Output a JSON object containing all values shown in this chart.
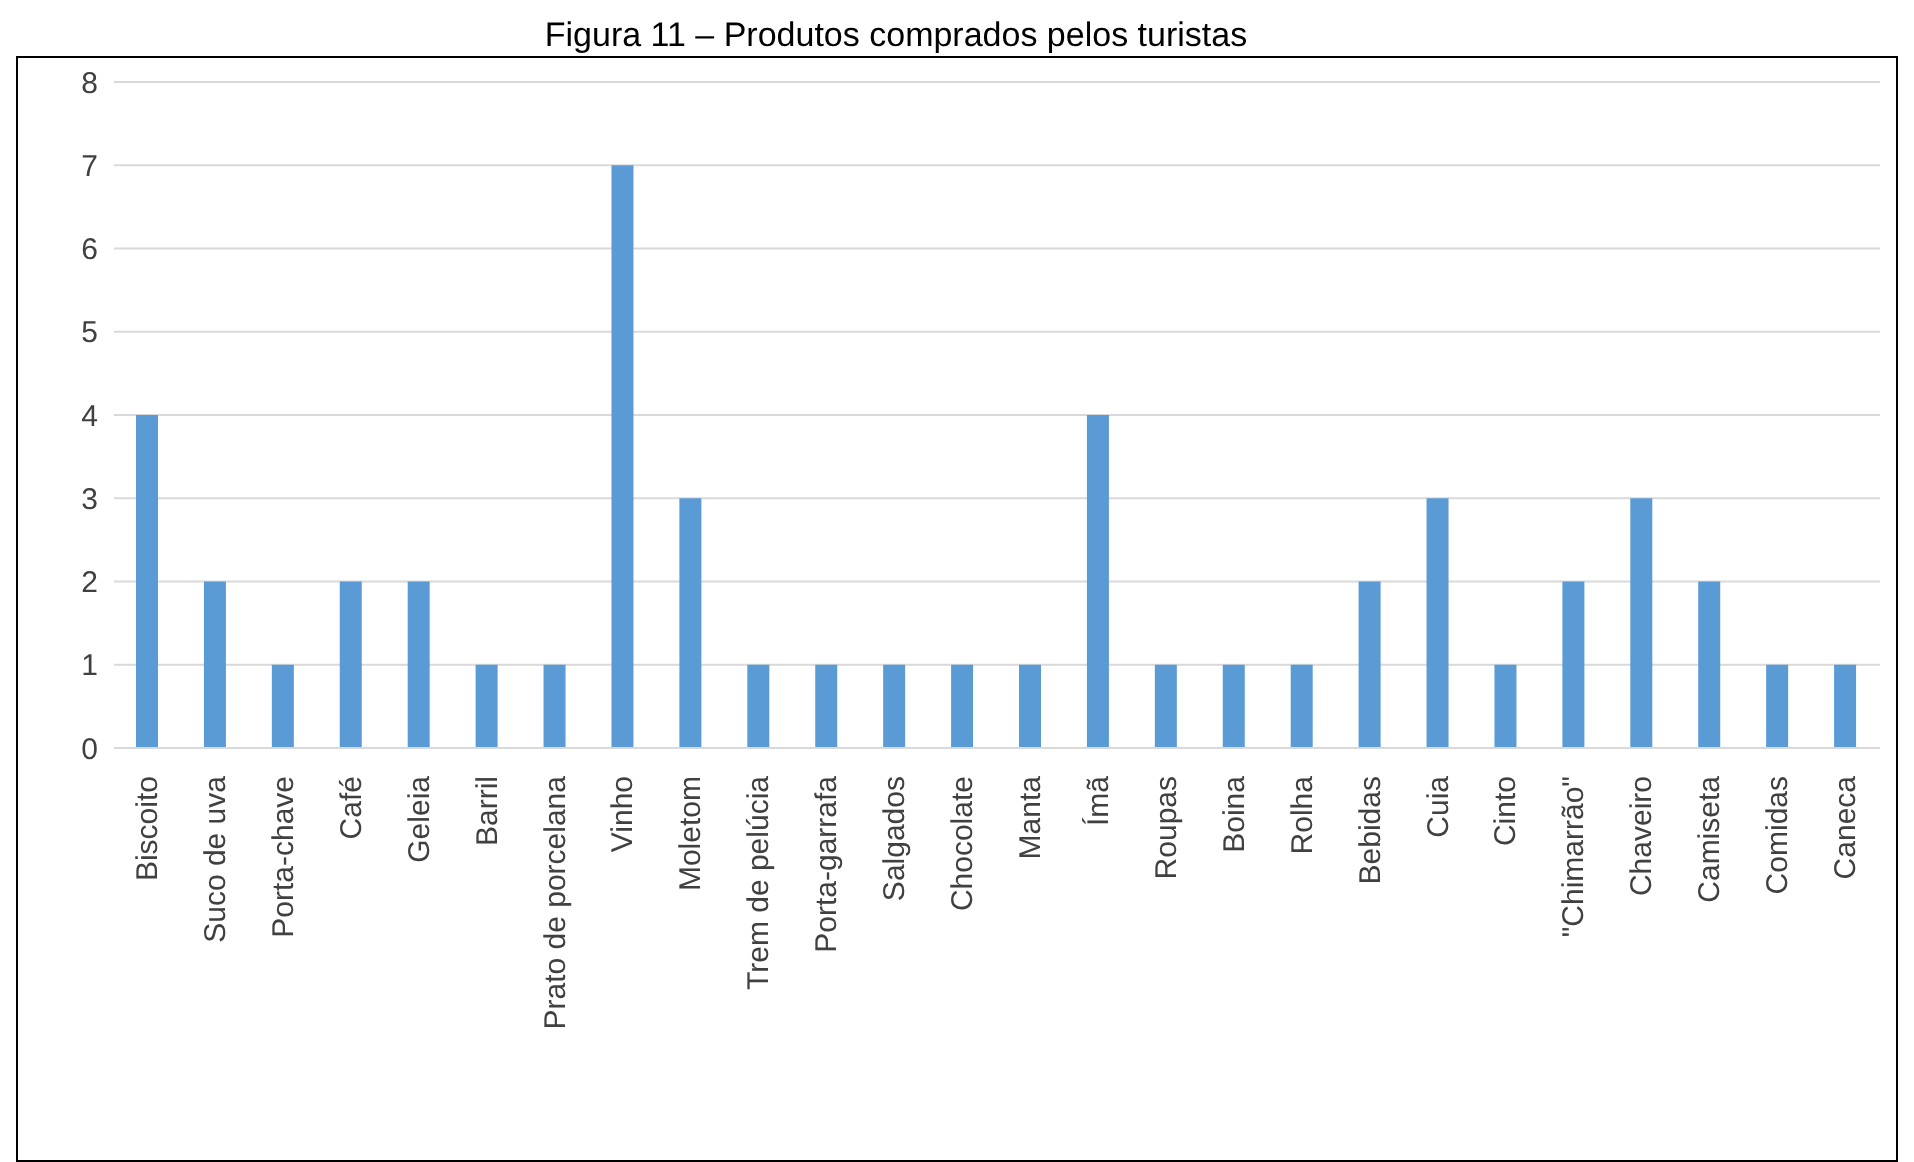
{
  "chart_data": {
    "type": "bar",
    "title": "Figura 11 – Produtos comprados pelos turistas",
    "categories": [
      "Biscoito",
      "Suco de uva",
      "Porta-chave",
      "Café",
      "Geleia",
      "Barril",
      "Prato de porcelana",
      "Vinho",
      "Moletom",
      "Trem de pelúcia",
      "Porta-garrafa",
      "Salgados",
      "Chocolate",
      "Manta",
      "Ímã",
      "Roupas",
      "Boina",
      "Rolha",
      "Bebidas",
      "Cuia",
      "Cinto",
      "\"Chimarrão\"",
      "Chaveiro",
      "Camiseta",
      "Comidas",
      "Caneca"
    ],
    "values": [
      4,
      2,
      1,
      2,
      2,
      1,
      1,
      7,
      3,
      1,
      1,
      1,
      1,
      1,
      4,
      1,
      1,
      1,
      2,
      3,
      1,
      2,
      3,
      2,
      1,
      1
    ],
    "color": "#5b9bd5",
    "ylim": [
      0,
      8
    ],
    "yticks": [
      0,
      1,
      2,
      3,
      4,
      5,
      6,
      7,
      8
    ],
    "grid": "y"
  }
}
